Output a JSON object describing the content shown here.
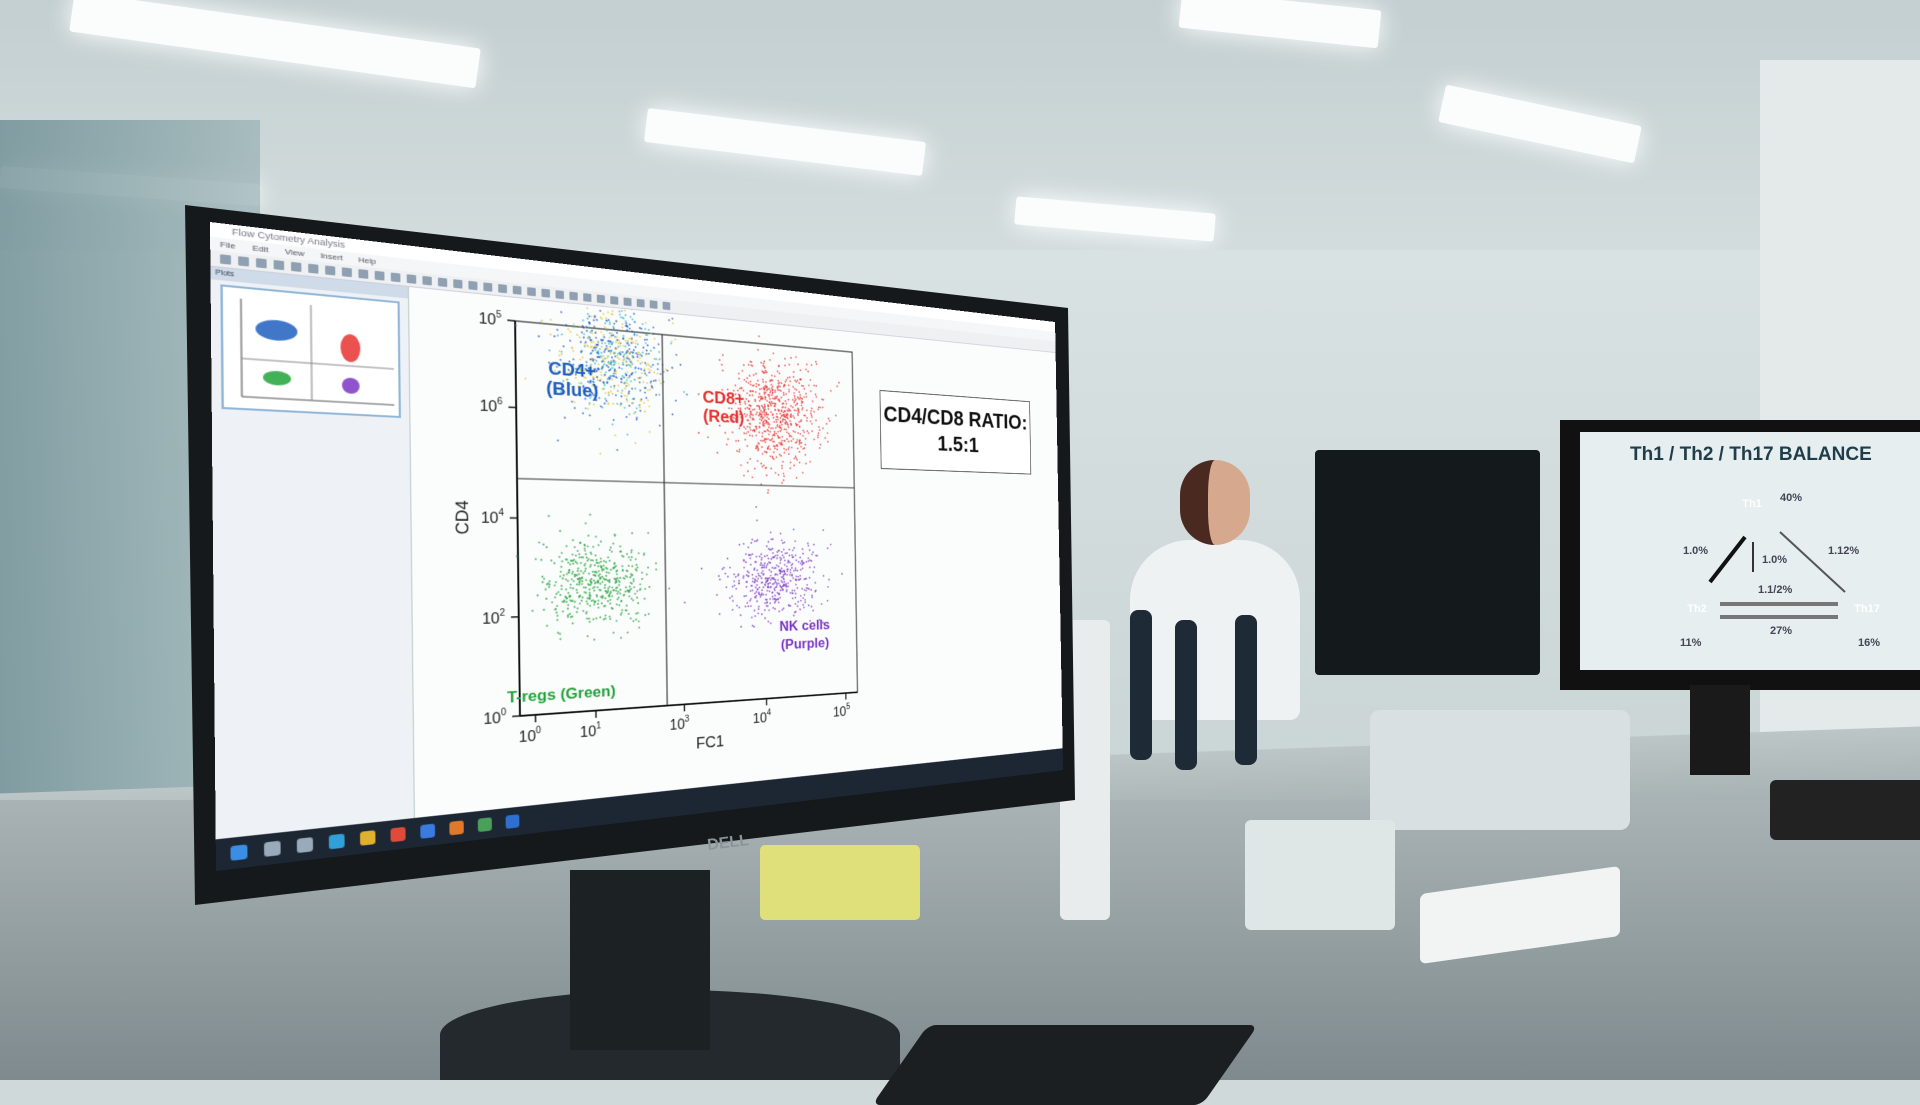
{
  "scene": "lab",
  "left_monitor": {
    "brand": "DELL",
    "window_title": "Flow Cytometry Analysis",
    "menu": [
      "File",
      "Edit",
      "View",
      "Insert",
      "Help"
    ],
    "panel_title": "Plots",
    "ratio_box": {
      "line1": "CD4/CD8 RATIO:",
      "line2": "1.5:1"
    },
    "chart_data": {
      "type": "scatter",
      "xlabel": "FC1",
      "ylabel": "CD4",
      "x_scale": "log",
      "y_scale": "log",
      "xlim": [
        1,
        100000
      ],
      "ylim": [
        1,
        100000
      ],
      "x_tick_labels": [
        {
          "base": "10",
          "exp": "0"
        },
        {
          "base": "10",
          "exp": "1"
        },
        {
          "base": "10",
          "exp": "3"
        },
        {
          "base": "10",
          "exp": "4"
        },
        {
          "base": "10",
          "exp": "5"
        }
      ],
      "y_tick_labels": [
        {
          "base": "10",
          "exp": "5"
        },
        {
          "base": "10",
          "exp": "6"
        },
        {
          "base": "10",
          "exp": "4"
        },
        {
          "base": "10",
          "exp": "2"
        },
        {
          "base": "10",
          "exp": "0"
        }
      ],
      "gates": {
        "x": 100,
        "y": 1000
      },
      "populations": [
        {
          "label_line1": "CD4+",
          "label_line2": "(Blue)",
          "color": "#1f5fbf",
          "center": [
            20,
            40000
          ],
          "events": "high"
        },
        {
          "label_line1": "CD8+",
          "label_line2": "(Red)",
          "color": "#e8322f",
          "center": [
            5000,
            10000
          ],
          "events": "high"
        },
        {
          "label_line1": "T-regs (Green)",
          "label_line2": "",
          "color": "#22a33a",
          "center": [
            10,
            50
          ],
          "events": "medium"
        },
        {
          "label_line1": "NK cells",
          "label_line2": "(Purple)",
          "color": "#7a35c4",
          "center": [
            5000,
            50
          ],
          "events": "medium"
        }
      ],
      "grid": false
    }
  },
  "right_monitor": {
    "title": "Th1 / Th2 / Th17 BALANCE",
    "nodes": [
      {
        "label": "Th1",
        "pct": "40%",
        "color": "#1f8a55"
      },
      {
        "label": "Th2",
        "pct": "11%",
        "color": "#d9773c"
      },
      {
        "label": "Th17",
        "pct": "16%",
        "color": "#1c3fb0"
      }
    ],
    "edges": [
      "1.0%",
      "1.0%",
      "1.12%",
      "1.1/2%",
      "27%"
    ]
  }
}
